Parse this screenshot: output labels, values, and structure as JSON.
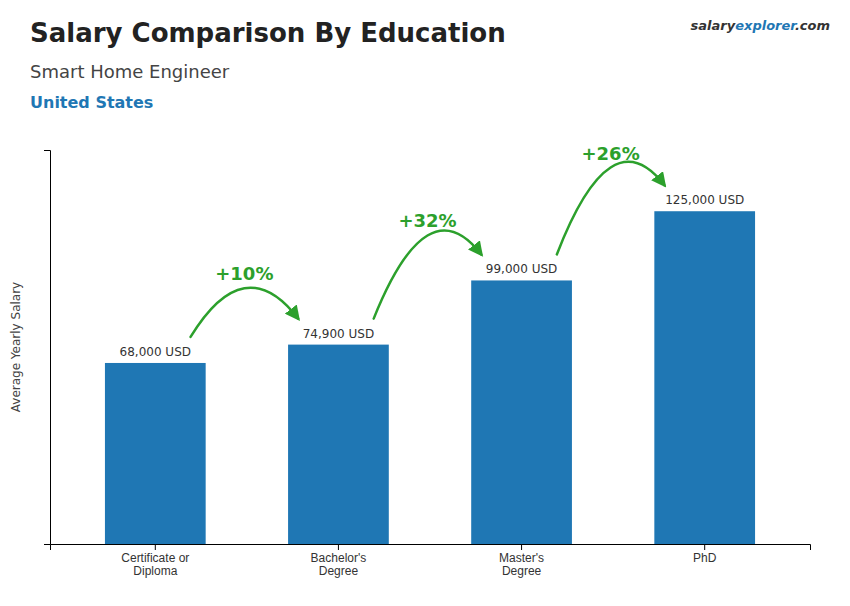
{
  "chart_data": {
    "type": "bar",
    "title": "Salary Comparison By Education",
    "subtitle": "Smart Home Engineer",
    "country": "United States",
    "brand": [
      "salary",
      "explorer",
      ".com"
    ],
    "ylabel": "Average Yearly Salary",
    "categories": [
      "Certificate or\nDiploma",
      "Bachelor's\nDegree",
      "Master's\nDegree",
      "PhD"
    ],
    "values": [
      68000,
      74900,
      99000,
      125000
    ],
    "value_labels": [
      "68,000 USD",
      "74,900 USD",
      "99,000 USD",
      "125,000 USD"
    ],
    "data_labels": true,
    "annotations": [
      "+10%",
      "+32%",
      "+26%"
    ],
    "ylim": [
      0,
      148000
    ],
    "yticks": [],
    "tick_labels": "x",
    "grid": false
  }
}
